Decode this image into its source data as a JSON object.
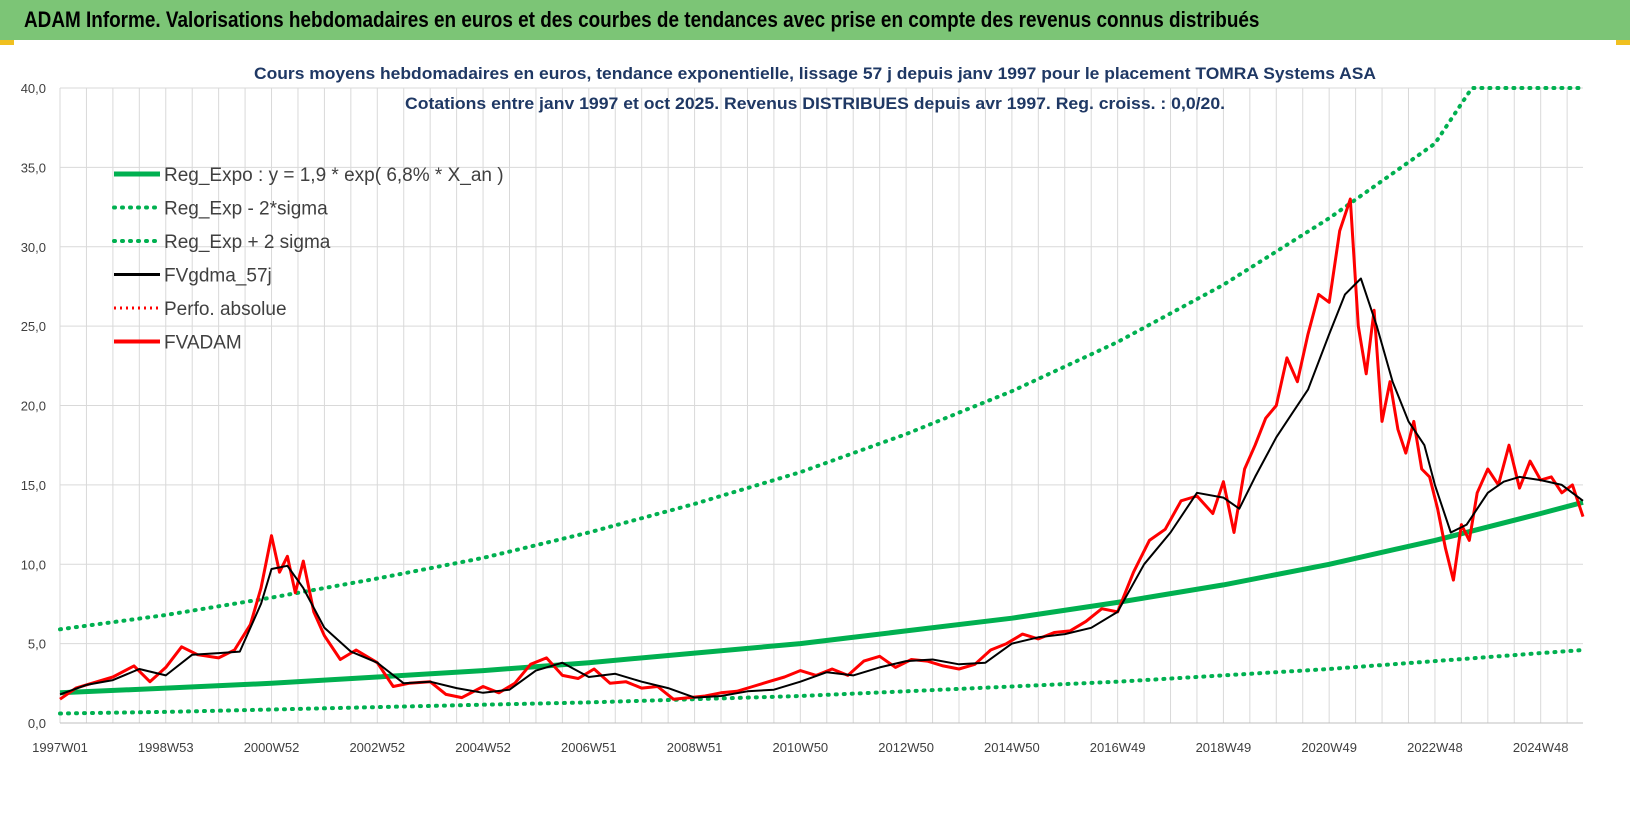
{
  "banner": {
    "title": "ADAM Informe. Valorisations hebdomadaires en euros et des courbes de tendances avec prise en compte des revenus connus distribués"
  },
  "colors": {
    "banner_bg": "#7cc576",
    "reg_expo": "#00b050",
    "fv_gdma": "#000000",
    "fv_adam": "#ff0000",
    "perfo": "#ff0000",
    "grid": "#d9d9d9"
  },
  "chart_data": {
    "type": "line",
    "title_line1": "Cours moyens hebdomadaires en euros, tendance exponentielle, lissage 57 j depuis janv 1997 pour le placement TOMRA Systems ASA",
    "title_line2": "Cotations entre janv 1997 et oct 2025. Revenus DISTRIBUES depuis avr 1997. Reg. croiss. : 0,0/20.",
    "ylim": [
      0,
      40
    ],
    "xlim": [
      1997.0,
      2025.8
    ],
    "y_ticks": [
      "0,0",
      "5,0",
      "10,0",
      "15,0",
      "20,0",
      "25,0",
      "30,0",
      "35,0",
      "40,0"
    ],
    "x_ticks": [
      "1997W01",
      "1998W53",
      "2000W52",
      "2002W52",
      "2004W52",
      "2006W51",
      "2008W51",
      "2010W50",
      "2012W50",
      "2014W50",
      "2016W49",
      "2018W49",
      "2020W49",
      "2022W48",
      "2024W48"
    ],
    "x_tick_years": [
      1997.0,
      1999.0,
      2001.0,
      2003.0,
      2005.0,
      2007.0,
      2009.0,
      2011.0,
      2013.0,
      2015.0,
      2017.0,
      2019.0,
      2021.0,
      2023.0,
      2025.0
    ],
    "grid": true,
    "legend_position": "top-left",
    "legend": [
      {
        "name": "Reg_Expo : y = 1,9 * exp( 6,8% *  X_an )",
        "color": "#00b050",
        "style": "solid-thick"
      },
      {
        "name": "Reg_Exp - 2*sigma",
        "color": "#00b050",
        "style": "dotted"
      },
      {
        "name": "Reg_Exp + 2 sigma",
        "color": "#00b050",
        "style": "dotted"
      },
      {
        "name": "FVgdma_57j",
        "color": "#000000",
        "style": "solid"
      },
      {
        "name": "Perfo. absolue",
        "color": "#ff0000",
        "style": "dotted"
      },
      {
        "name": "FVADAM",
        "color": "#ff0000",
        "style": "solid-thick"
      }
    ],
    "series": [
      {
        "name": "Reg_Expo : y = 1,9 * exp( 6,8% *  X_an )",
        "x": [
          1997.0,
          1999.0,
          2001.0,
          2003.0,
          2005.0,
          2007.0,
          2009.0,
          2011.0,
          2013.0,
          2015.0,
          2017.0,
          2019.0,
          2021.0,
          2023.0,
          2025.0,
          2025.8
        ],
        "values": [
          1.9,
          2.2,
          2.5,
          2.9,
          3.3,
          3.8,
          4.4,
          5.0,
          5.8,
          6.6,
          7.6,
          8.7,
          10.0,
          11.5,
          13.2,
          13.9
        ]
      },
      {
        "name": "Reg_Exp - 2*sigma",
        "x": [
          1997.0,
          1999.0,
          2001.0,
          2003.0,
          2005.0,
          2007.0,
          2009.0,
          2011.0,
          2013.0,
          2015.0,
          2017.0,
          2019.0,
          2021.0,
          2023.0,
          2025.0,
          2025.8
        ],
        "values": [
          0.6,
          0.7,
          0.85,
          1.0,
          1.15,
          1.3,
          1.5,
          1.7,
          2.0,
          2.3,
          2.6,
          3.0,
          3.4,
          3.9,
          4.4,
          4.6
        ]
      },
      {
        "name": "Reg_Exp + 2 sigma",
        "x": [
          1997.0,
          1999.0,
          2001.0,
          2003.0,
          2005.0,
          2007.0,
          2009.0,
          2011.0,
          2013.0,
          2015.0,
          2017.0,
          2019.0,
          2021.0,
          2023.0,
          2023.7,
          2025.8
        ],
        "values": [
          5.9,
          6.8,
          7.9,
          9.1,
          10.4,
          12.0,
          13.8,
          15.8,
          18.2,
          20.9,
          24.0,
          27.6,
          31.8,
          36.5,
          40.0,
          40.0
        ]
      },
      {
        "name": "FVgdma_57j",
        "x": [
          1997.0,
          1997.5,
          1998.0,
          1998.5,
          1999.0,
          1999.5,
          2000.0,
          2000.4,
          2000.8,
          2001.0,
          2001.3,
          2001.6,
          2002.0,
          2002.5,
          2003.0,
          2003.5,
          2004.0,
          2004.5,
          2005.0,
          2005.5,
          2006.0,
          2006.5,
          2007.0,
          2007.5,
          2008.0,
          2008.5,
          2009.0,
          2009.5,
          2010.0,
          2010.5,
          2011.0,
          2011.5,
          2012.0,
          2012.5,
          2013.0,
          2013.5,
          2014.0,
          2014.5,
          2015.0,
          2015.5,
          2016.0,
          2016.5,
          2017.0,
          2017.5,
          2018.0,
          2018.5,
          2019.0,
          2019.3,
          2019.6,
          2020.0,
          2020.3,
          2020.6,
          2021.0,
          2021.3,
          2021.6,
          2021.9,
          2022.2,
          2022.5,
          2022.8,
          2023.0,
          2023.3,
          2023.6,
          2024.0,
          2024.3,
          2024.6,
          2025.0,
          2025.4,
          2025.8
        ],
        "values": [
          1.8,
          2.4,
          2.7,
          3.4,
          3.0,
          4.3,
          4.4,
          4.5,
          7.5,
          9.7,
          9.9,
          8.5,
          6.0,
          4.5,
          3.8,
          2.5,
          2.6,
          2.2,
          1.9,
          2.1,
          3.3,
          3.8,
          2.9,
          3.1,
          2.6,
          2.2,
          1.6,
          1.7,
          2.0,
          2.1,
          2.6,
          3.2,
          3.0,
          3.5,
          3.9,
          4.0,
          3.7,
          3.8,
          5.0,
          5.4,
          5.6,
          6.0,
          7.0,
          10.0,
          12.0,
          14.5,
          14.2,
          13.5,
          15.5,
          18.0,
          19.5,
          21.0,
          24.5,
          27.0,
          28.0,
          25.0,
          21.5,
          19.0,
          17.5,
          15.0,
          12.0,
          12.5,
          14.5,
          15.2,
          15.5,
          15.3,
          15.0,
          14.0
        ]
      },
      {
        "name": "FVADAM",
        "x": [
          1997.0,
          1997.3,
          1997.6,
          1998.0,
          1998.4,
          1998.7,
          1999.0,
          1999.3,
          1999.6,
          2000.0,
          2000.3,
          2000.6,
          2000.8,
          2001.0,
          2001.15,
          2001.3,
          2001.45,
          2001.6,
          2001.8,
          2002.0,
          2002.3,
          2002.6,
          2003.0,
          2003.3,
          2003.6,
          2004.0,
          2004.3,
          2004.6,
          2005.0,
          2005.3,
          2005.6,
          2005.9,
          2006.2,
          2006.5,
          2006.8,
          2007.1,
          2007.4,
          2007.7,
          2008.0,
          2008.3,
          2008.6,
          2008.9,
          2009.2,
          2009.5,
          2009.8,
          2010.1,
          2010.4,
          2010.7,
          2011.0,
          2011.3,
          2011.6,
          2011.9,
          2012.2,
          2012.5,
          2012.8,
          2013.1,
          2013.4,
          2013.7,
          2014.0,
          2014.3,
          2014.6,
          2014.9,
          2015.2,
          2015.5,
          2015.8,
          2016.1,
          2016.4,
          2016.7,
          2017.0,
          2017.3,
          2017.6,
          2017.9,
          2018.2,
          2018.5,
          2018.8,
          2019.0,
          2019.2,
          2019.4,
          2019.6,
          2019.8,
          2020.0,
          2020.2,
          2020.4,
          2020.6,
          2020.8,
          2021.0,
          2021.2,
          2021.4,
          2021.55,
          2021.7,
          2021.85,
          2022.0,
          2022.15,
          2022.3,
          2022.45,
          2022.6,
          2022.75,
          2022.9,
          2023.05,
          2023.2,
          2023.35,
          2023.5,
          2023.65,
          2023.8,
          2024.0,
          2024.2,
          2024.4,
          2024.6,
          2024.8,
          2025.0,
          2025.2,
          2025.4,
          2025.6,
          2025.8
        ],
        "values": [
          1.5,
          2.2,
          2.5,
          2.9,
          3.6,
          2.6,
          3.5,
          4.8,
          4.3,
          4.1,
          4.6,
          6.2,
          8.5,
          11.8,
          9.5,
          10.5,
          8.2,
          10.2,
          7.0,
          5.5,
          4.0,
          4.6,
          3.8,
          2.3,
          2.5,
          2.6,
          1.8,
          1.6,
          2.3,
          1.9,
          2.5,
          3.7,
          4.1,
          3.0,
          2.8,
          3.4,
          2.5,
          2.6,
          2.2,
          2.3,
          1.5,
          1.6,
          1.7,
          1.9,
          2.0,
          2.3,
          2.6,
          2.9,
          3.3,
          3.0,
          3.4,
          3.0,
          3.9,
          4.2,
          3.5,
          4.0,
          3.9,
          3.6,
          3.4,
          3.7,
          4.6,
          5.0,
          5.6,
          5.3,
          5.7,
          5.8,
          6.4,
          7.2,
          7.0,
          9.5,
          11.5,
          12.2,
          14.0,
          14.3,
          13.2,
          15.2,
          12.0,
          16.0,
          17.5,
          19.2,
          20.0,
          23.0,
          21.5,
          24.5,
          27.0,
          26.5,
          31.0,
          33.0,
          25.0,
          22.0,
          26.0,
          19.0,
          21.5,
          18.5,
          17.0,
          19.0,
          16.0,
          15.5,
          13.5,
          11.0,
          9.0,
          12.5,
          11.5,
          14.5,
          16.0,
          15.0,
          17.5,
          14.8,
          16.5,
          15.3,
          15.5,
          14.5,
          15.0,
          13.0
        ]
      }
    ]
  }
}
